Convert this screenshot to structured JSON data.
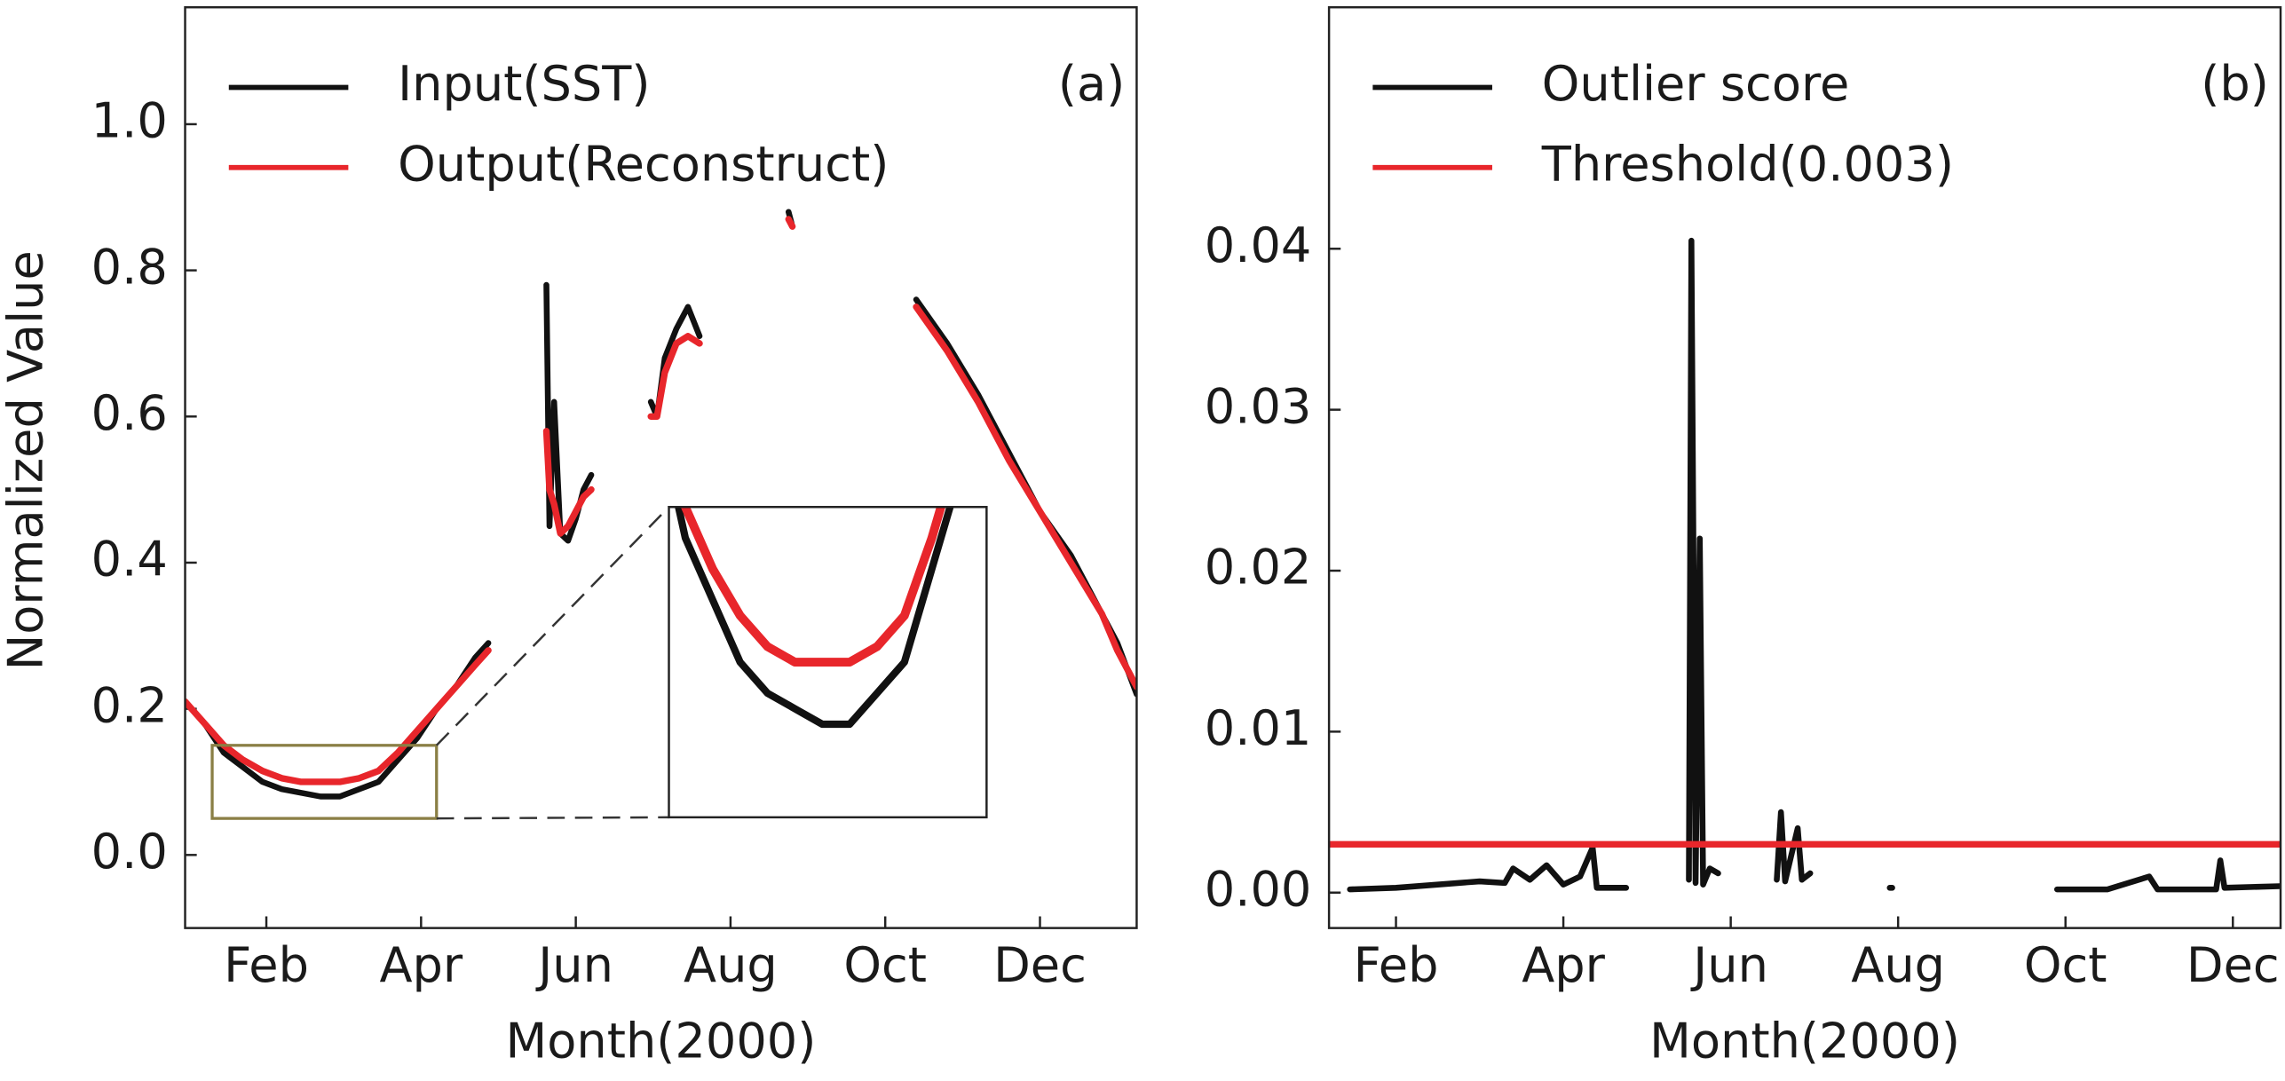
{
  "chart_data": [
    {
      "type": "line",
      "panel_label": "(a)",
      "x_label": "Month(2000)",
      "y_label": "Normalized Value",
      "legend": "upper left",
      "x": [
        0.95,
        1.2,
        1.45,
        1.7,
        1.95,
        2.2,
        2.45,
        2.7,
        2.95,
        3.2,
        3.45,
        3.7,
        3.95,
        4.2,
        4.45,
        4.7,
        4.87,
        5.2,
        5.62,
        5.66,
        5.72,
        5.8,
        5.9,
        6.0,
        6.1,
        6.2,
        6.6,
        6.97,
        7.05,
        7.15,
        7.3,
        7.45,
        7.6,
        8.2,
        8.75,
        8.8,
        9.5,
        10.4,
        10.8,
        11.2,
        11.6,
        12.0,
        12.4,
        12.8,
        13.0,
        13.25
      ],
      "series": [
        {
          "name": "Input(SST)",
          "color": "#111111",
          "values": [
            0.21,
            0.18,
            0.14,
            0.12,
            0.1,
            0.09,
            0.085,
            0.08,
            0.08,
            0.09,
            0.1,
            0.13,
            0.16,
            0.2,
            0.23,
            0.27,
            0.29,
            null,
            0.78,
            0.45,
            0.62,
            0.44,
            0.43,
            0.46,
            0.5,
            0.52,
            null,
            0.62,
            0.6,
            0.68,
            0.72,
            0.75,
            0.71,
            null,
            0.88,
            0.86,
            null,
            0.76,
            0.7,
            0.63,
            0.55,
            0.47,
            0.41,
            0.33,
            0.29,
            0.22
          ]
        },
        {
          "name": "Output(Reconstruct)",
          "color": "#e8262b",
          "values": [
            0.21,
            0.18,
            0.15,
            0.13,
            0.115,
            0.105,
            0.1,
            0.1,
            0.1,
            0.105,
            0.115,
            0.14,
            0.17,
            0.2,
            0.23,
            0.26,
            0.28,
            null,
            0.58,
            0.5,
            0.48,
            0.44,
            0.45,
            0.47,
            0.49,
            0.5,
            null,
            0.6,
            0.6,
            0.66,
            0.7,
            0.71,
            0.7,
            null,
            0.87,
            0.86,
            null,
            0.75,
            0.69,
            0.62,
            0.54,
            0.47,
            0.4,
            0.33,
            0.28,
            0.23
          ]
        }
      ],
      "xlim": [
        0.95,
        13.25
      ],
      "xticks": [
        {
          "value": 2,
          "label": "Feb"
        },
        {
          "value": 4,
          "label": "Apr"
        },
        {
          "value": 6,
          "label": "Jun"
        },
        {
          "value": 8,
          "label": "Aug"
        },
        {
          "value": 10,
          "label": "Oct"
        },
        {
          "value": 12,
          "label": "Dec"
        }
      ],
      "ylim": [
        -0.1,
        1.16
      ],
      "yticks": [
        {
          "value": 0,
          "label": "0.0"
        },
        0.2,
        0.4,
        0.6,
        0.8,
        {
          "value": 1,
          "label": "1.0"
        }
      ],
      "inset": {
        "xlim": [
          1.3,
          4.2
        ],
        "ylim": [
          0.05,
          0.15
        ]
      }
    },
    {
      "type": "line",
      "panel_label": "(b)",
      "x_label": "Month(2000)",
      "legend": "upper left",
      "series": [
        {
          "name": "Outlier score",
          "color": "#111111",
          "x": [
            1.45,
            2.0,
            2.5,
            3.0,
            3.3,
            3.4,
            3.6,
            3.8,
            4.0,
            4.2,
            4.35,
            4.4,
            4.75,
            5.1,
            5.5,
            5.53,
            5.58,
            5.63,
            5.67,
            5.75,
            5.85,
            6.2,
            6.55,
            6.6,
            6.65,
            6.8,
            6.85,
            6.95,
            7.4,
            7.9,
            7.93,
            9.0,
            9.9,
            10.5,
            11.0,
            11.1,
            11.8,
            11.85,
            11.9,
            12.56
          ],
          "values": [
            0.0002,
            0.0003,
            0.0005,
            0.0007,
            0.0006,
            0.0015,
            0.0008,
            0.0017,
            0.0005,
            0.001,
            0.0028,
            0.0003,
            0.0003,
            null,
            0.0008,
            0.0405,
            0.0006,
            0.022,
            0.0005,
            0.0015,
            0.0012,
            null,
            0.0008,
            0.005,
            0.0007,
            0.004,
            0.0008,
            0.0012,
            null,
            0.0003,
            0.0003,
            null,
            0.0002,
            0.0002,
            0.001,
            0.0002,
            0.0002,
            0.002,
            0.0003,
            0.0004
          ]
        },
        {
          "name": "Threshold(0.003)",
          "color": "#e8262b",
          "x": [
            1.2,
            12.57
          ],
          "values": [
            0.003,
            0.003
          ]
        }
      ],
      "xlim": [
        1.2,
        12.57
      ],
      "xticks": [
        {
          "value": 2,
          "label": "Feb"
        },
        {
          "value": 4,
          "label": "Apr"
        },
        {
          "value": 6,
          "label": "Jun"
        },
        {
          "value": 8,
          "label": "Aug"
        },
        {
          "value": 10,
          "label": "Oct"
        },
        {
          "value": 12,
          "label": "Dec"
        }
      ],
      "ylim": [
        -0.0022,
        0.055
      ],
      "yticks": [
        {
          "value": 0,
          "label": "0.00"
        },
        0.01,
        0.02,
        0.03,
        0.04
      ]
    }
  ]
}
